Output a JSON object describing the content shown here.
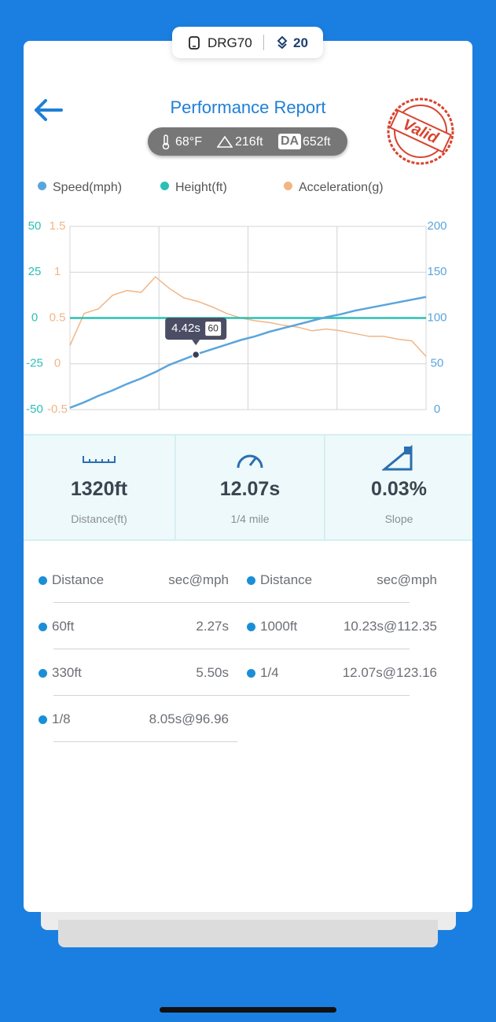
{
  "device": {
    "name": "DRG70",
    "count": "20"
  },
  "header": {
    "title": "Performance Report",
    "stamp": "Valid"
  },
  "conditions": {
    "temperature": "68°F",
    "altitude": "216ft",
    "da_label": "DA",
    "density_altitude": "652ft"
  },
  "chart_data": {
    "type": "line",
    "x": [
      0,
      0.5,
      1,
      1.5,
      2,
      2.5,
      3,
      3.5,
      4,
      4.5,
      5,
      5.5,
      6,
      6.5,
      7,
      7.5,
      8,
      8.5,
      9,
      9.5,
      10,
      10.5,
      11,
      11.5,
      12,
      12.5
    ],
    "xlim": [
      0,
      12.5
    ],
    "series": [
      {
        "name": "Speed(mph)",
        "color": "#5aa5dc",
        "axis": "y2",
        "values": [
          2,
          8,
          15,
          21,
          28,
          34,
          41,
          49,
          55,
          61,
          66,
          71,
          76,
          80,
          85,
          89,
          93,
          97,
          101,
          104,
          108,
          111,
          114,
          117,
          120,
          123
        ]
      },
      {
        "name": "Height(ft)",
        "color": "#2cc0b4",
        "axis": "y",
        "values": [
          0,
          0,
          0,
          0,
          0,
          0,
          0,
          0,
          0,
          0,
          0,
          0,
          0,
          0,
          0,
          0,
          0,
          0,
          0,
          0,
          0,
          0,
          0,
          0,
          0,
          0
        ]
      },
      {
        "name": "Acceleration(g)",
        "color": "#f2b585",
        "axis": "y3",
        "values": [
          0.2,
          0.55,
          0.6,
          0.75,
          0.8,
          0.78,
          0.95,
          0.82,
          0.72,
          0.68,
          0.62,
          0.55,
          0.5,
          0.47,
          0.45,
          0.42,
          0.4,
          0.36,
          0.38,
          0.36,
          0.33,
          0.3,
          0.3,
          0.27,
          0.25,
          0.08
        ]
      }
    ],
    "ylim": [
      -50,
      50
    ],
    "yticks": [
      50,
      25,
      0,
      -25,
      -50
    ],
    "y2lim": [
      0,
      200
    ],
    "y2ticks": [
      200,
      150,
      100,
      50,
      0
    ],
    "y3lim": [
      -0.5,
      1.5
    ],
    "y3ticks": [
      1.5,
      1,
      0.5,
      0,
      -0.5
    ],
    "grid": true,
    "annotation": {
      "x": 4.42,
      "y": 60,
      "label": "4.42s"
    }
  },
  "stats": [
    {
      "value": "1320ft",
      "label": "Distance(ft)"
    },
    {
      "value": "12.07s",
      "label": "1/4 mile"
    },
    {
      "value": "0.03%",
      "label": "Slope"
    }
  ],
  "table": {
    "columns": [
      "Distance",
      "sec@mph"
    ],
    "left": [
      [
        "60ft",
        "2.27s"
      ],
      [
        "330ft",
        "5.50s"
      ],
      [
        "1/8",
        "8.05s@96.96"
      ]
    ],
    "right": [
      [
        "1000ft",
        "10.23s@112.35"
      ],
      [
        "1/4",
        "12.07s@123.16"
      ]
    ]
  }
}
